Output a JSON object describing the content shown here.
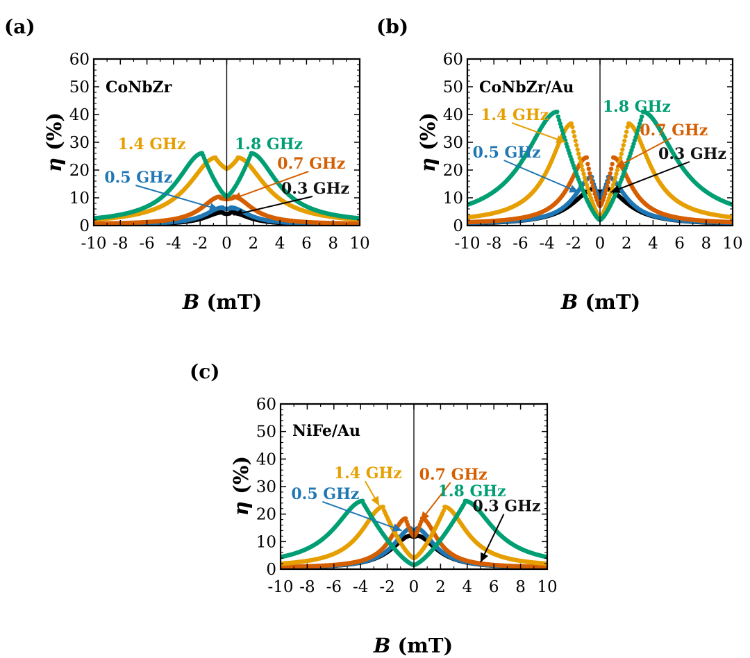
{
  "figure": {
    "xlabel_symbol": "B",
    "xlabel_unit": "(mT)",
    "ylabel_symbol": "η",
    "ylabel_unit": "(%)"
  },
  "chart_data": [
    {
      "type": "scatter",
      "panel_label": "(a)",
      "sample": "CoNbZr",
      "xlabel": "B (mT)",
      "ylabel": "η (%)",
      "xlim": [
        -10,
        10
      ],
      "ylim": [
        0,
        60
      ],
      "xticks": [
        -10,
        -8,
        -6,
        -4,
        -2,
        0,
        2,
        4,
        6,
        8,
        10
      ],
      "xtick_labels": [
        "-10",
        "-8",
        "-6",
        "-4",
        "-2",
        "0",
        "2",
        "4",
        "6",
        "8",
        "10"
      ],
      "yticks": [
        0,
        10,
        20,
        30,
        40,
        50,
        60
      ],
      "ytick_labels": [
        "0",
        "10",
        "20",
        "30",
        "40",
        "50",
        "60"
      ],
      "series": [
        {
          "name": "0.3 GHz",
          "color": "#000000",
          "peak_positions": [
            -0.3,
            0.3
          ],
          "peak_heights": [
            4.5,
            4.5
          ],
          "center_value": 4.2,
          "width": 1.6,
          "base": 0.3,
          "annotation": {
            "label": "0.3 GHz",
            "text_pos": [
              4.1,
              11.5
            ],
            "arrow_to": [
              0.5,
              3.8
            ]
          }
        },
        {
          "name": "0.5 GHz",
          "color": "#1f77b4",
          "peak_positions": [
            -0.3,
            0.3
          ],
          "peak_heights": [
            6.2,
            6.2
          ],
          "center_value": 6.0,
          "width": 1.6,
          "base": 0.3,
          "annotation": {
            "label": "0.5 GHz",
            "text_pos": [
              -9.2,
              15.5
            ],
            "arrow_to": [
              -0.6,
              5.8
            ]
          }
        },
        {
          "name": "0.7 GHz",
          "color": "#d55e00",
          "peak_positions": [
            -0.5,
            0.5
          ],
          "peak_heights": [
            10.0,
            10.0
          ],
          "center_value": 9.5,
          "width": 1.7,
          "base": 0.4,
          "annotation": {
            "label": "0.7 GHz",
            "text_pos": [
              3.8,
              20.5
            ],
            "arrow_to": [
              0.4,
              9.5
            ]
          }
        },
        {
          "name": "1.4 GHz",
          "color": "#e69f00",
          "peak_positions": [
            -0.8,
            0.8
          ],
          "peak_heights": [
            24.0,
            24.0
          ],
          "center_value": 20.5,
          "width": 2.5,
          "base": 0.5,
          "annotation": {
            "label": "1.4 GHz",
            "text_pos": [
              -8.2,
              27.5
            ],
            "arrow_to": null
          }
        },
        {
          "name": "1.8 GHz",
          "color": "#009e73",
          "peak_positions": [
            -1.8,
            1.8
          ],
          "peak_heights": [
            25.5,
            25.5
          ],
          "center_value": 10.5,
          "width": 2.4,
          "base": 0.6,
          "annotation": {
            "label": "1.8 GHz",
            "text_pos": [
              0.6,
              27.5
            ],
            "arrow_to": null
          }
        }
      ]
    },
    {
      "type": "scatter",
      "panel_label": "(b)",
      "sample": "CoNbZr/Au",
      "xlabel": "B (mT)",
      "ylabel": "η (%)",
      "xlim": [
        -10,
        10
      ],
      "ylim": [
        0,
        60
      ],
      "xticks": [
        -10,
        -8,
        -6,
        -4,
        -2,
        0,
        2,
        4,
        6,
        8,
        10
      ],
      "xtick_labels": [
        "-10",
        "-8",
        "-6",
        "-4",
        "-2",
        "0",
        "2",
        "4",
        "6",
        "8",
        "10"
      ],
      "yticks": [
        0,
        10,
        20,
        30,
        40,
        50,
        60
      ],
      "ytick_labels": [
        "0",
        "10",
        "20",
        "30",
        "40",
        "50",
        "60"
      ],
      "series": [
        {
          "name": "0.3 GHz",
          "color": "#000000",
          "peak_positions": [
            -0.4,
            0.4
          ],
          "peak_heights": [
            13.0,
            13.0
          ],
          "center_value": 12.0,
          "width": 2.0,
          "base": 0.3,
          "annotation": {
            "label": "0.3 GHz",
            "text_pos": [
              4.4,
              24.0
            ],
            "arrow_to": [
              0.8,
              12.0
            ]
          }
        },
        {
          "name": "0.5 GHz",
          "color": "#1f77b4",
          "peak_positions": [
            -0.6,
            0.6
          ],
          "peak_heights": [
            17.0,
            17.0
          ],
          "center_value": 10.0,
          "width": 1.6,
          "base": 0.5,
          "annotation": {
            "label": "0.5 GHz",
            "text_pos": [
              -9.6,
              24.5
            ],
            "arrow_to": [
              -1.6,
              12.0
            ]
          }
        },
        {
          "name": "0.7 GHz",
          "color": "#d55e00",
          "peak_positions": [
            -1.0,
            1.0
          ],
          "peak_heights": [
            24.0,
            24.0
          ],
          "center_value": 7.0,
          "width": 1.6,
          "base": 0.5,
          "annotation": {
            "label": "0.7 GHz",
            "text_pos": [
              3.0,
              32.5
            ],
            "arrow_to": [
              1.2,
              21.0
            ]
          }
        },
        {
          "name": "1.4 GHz",
          "color": "#e69f00",
          "peak_positions": [
            -2.1,
            2.1
          ],
          "peak_heights": [
            36.0,
            36.0
          ],
          "center_value": 3.0,
          "width": 2.0,
          "base": 0.8,
          "annotation": {
            "label": "1.4 GHz",
            "text_pos": [
              -9.0,
              38.0
            ],
            "arrow_to": [
              -2.6,
              30.0
            ]
          }
        },
        {
          "name": "1.8 GHz",
          "color": "#009e73",
          "peak_positions": [
            -3.2,
            3.2
          ],
          "peak_heights": [
            40.0,
            40.0
          ],
          "center_value": 2.0,
          "width": 3.0,
          "base": 1.0,
          "annotation": {
            "label": "1.8 GHz",
            "text_pos": [
              0.2,
              41.0
            ],
            "arrow_to": null
          }
        }
      ]
    },
    {
      "type": "scatter",
      "panel_label": "(c)",
      "sample": "NiFe/Au",
      "xlabel": "B (mT)",
      "ylabel": "η (%)",
      "xlim": [
        -10,
        10
      ],
      "ylim": [
        0,
        60
      ],
      "xticks": [
        -10,
        -8,
        -6,
        -4,
        -2,
        0,
        2,
        4,
        6,
        8,
        10
      ],
      "xtick_labels": [
        "-10",
        "-8",
        "-6",
        "-4",
        "-2",
        "0",
        "2",
        "4",
        "6",
        "8",
        "10"
      ],
      "yticks": [
        0,
        10,
        20,
        30,
        40,
        50,
        60
      ],
      "ytick_labels": [
        "0",
        "10",
        "20",
        "30",
        "40",
        "50",
        "60"
      ],
      "series": [
        {
          "name": "0.3 GHz",
          "color": "#000000",
          "peak_positions": [
            -0.2,
            0.2
          ],
          "peak_heights": [
            12.0,
            12.0
          ],
          "center_value": 11.8,
          "width": 1.8,
          "base": 0.2,
          "annotation": {
            "label": "0.3 GHz",
            "text_pos": [
              4.4,
              21.0
            ],
            "arrow_to": [
              5.0,
              2.5
            ]
          }
        },
        {
          "name": "0.5 GHz",
          "color": "#1f77b4",
          "peak_positions": [
            -0.2,
            0.2
          ],
          "peak_heights": [
            14.5,
            14.5
          ],
          "center_value": 14.0,
          "width": 1.6,
          "base": 0.3,
          "annotation": {
            "label": "0.5 GHz",
            "text_pos": [
              -9.2,
              25.5
            ],
            "arrow_to": [
              -0.9,
              14.0
            ]
          }
        },
        {
          "name": "0.7 GHz",
          "color": "#d55e00",
          "peak_positions": [
            -0.6,
            0.6
          ],
          "peak_heights": [
            18.0,
            18.0
          ],
          "center_value": 12.0,
          "width": 1.4,
          "base": 0.4,
          "annotation": {
            "label": "0.7 GHz",
            "text_pos": [
              0.4,
              32.5
            ],
            "arrow_to": [
              0.5,
              17.5
            ]
          }
        },
        {
          "name": "1.4 GHz",
          "color": "#e69f00",
          "peak_positions": [
            -2.3,
            2.3
          ],
          "peak_heights": [
            22.0,
            22.0
          ],
          "center_value": 4.0,
          "width": 2.0,
          "base": 0.6,
          "annotation": {
            "label": "1.4 GHz",
            "text_pos": [
              -6.0,
              33.0
            ],
            "arrow_to": [
              -2.6,
              23.0
            ]
          }
        },
        {
          "name": "1.8 GHz",
          "color": "#009e73",
          "peak_positions": [
            -3.8,
            3.8
          ],
          "peak_heights": [
            24.0,
            24.0
          ],
          "center_value": 1.5,
          "width": 2.6,
          "base": 0.8,
          "annotation": {
            "label": "1.8 GHz",
            "text_pos": [
              1.8,
              26.5
            ],
            "arrow_to": null
          }
        }
      ]
    }
  ]
}
